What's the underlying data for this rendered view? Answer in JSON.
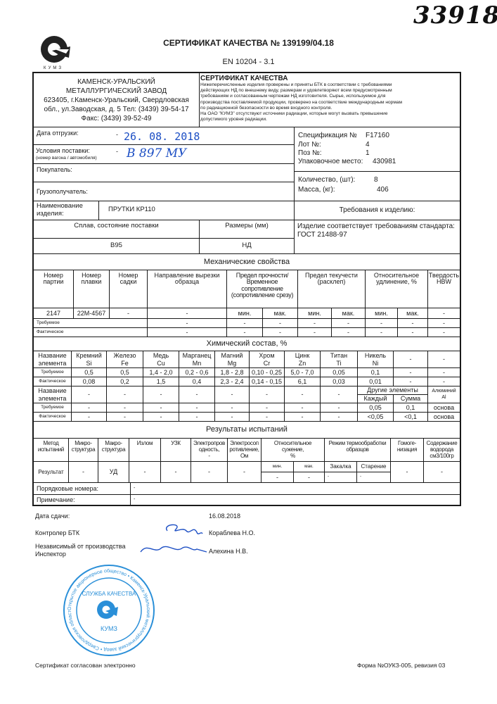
{
  "document": {
    "handwritten_number": "33918",
    "title": "СЕРТИФИКАТ КАЧЕСТВА № 139199/04.18",
    "standard": "EN 10204 - 3.1",
    "logo_text": "КУМЗ"
  },
  "company": {
    "lines": [
      "КАМЕНСК-УРАЛЬСКИЙ",
      "МЕТАЛЛУРГИЧЕСКИЙ ЗАВОД",
      "623405, г.Каменск-Уральский, Свердловская",
      "обл., ул.Заводская, д. 5 Тел: (3439) 39-54-17",
      "Факс: (3439) 39-52-49"
    ]
  },
  "certificate_box": {
    "title": "СЕРТИФИКАТ КАЧЕСТВА",
    "lines": [
      "Нижеперечисленные изделия проверены и приняты БТК в соответствии с требованиями",
      "действующих НД по внешнему виду, размерам и удовлетворяют всем предусмотренным",
      "требованиям и согласованным чертежам НД изготовителя. Сырье, используемое для",
      "производства поставляемой продукции, проверено на соответствие международным нормам",
      "по радиационной безопасности во время входного контроля.",
      "На ОАО \"КУМЗ\" отсутствуют источники радиации, которые могут вызвать превышение",
      "допустимого уровня радиации."
    ]
  },
  "shipment": {
    "date_label": "Дата отгрузки:",
    "date_value": "26. 08. 2018",
    "conditions_label": "Условия поставки:",
    "conditions_sub": "(номер вагона / автомобиля)",
    "conditions_value": "В 897 МУ",
    "dash": "-",
    "buyer_label": "Покупатель:",
    "consignee_label": "Грузополучатель:",
    "product_label": "Наименование\nизделия:",
    "product_value": "ПРУТКИ КР110",
    "alloy_header": "Сплав, состояние поставки",
    "size_header": "Размеры (мм)",
    "alloy_value": "В95",
    "size_value": "НД"
  },
  "specification": {
    "spec_label": "Спецификация №",
    "spec_value": "F17160",
    "lot_label": "Лот №:",
    "lot_value": "4",
    "pos_label": "Поз №:",
    "pos_value": "1",
    "pack_label": "Упаковочное место:",
    "pack_value": "430981",
    "qty_label": "Количество, (шт):",
    "qty_value": "8",
    "mass_label": "Масса, (кг):",
    "mass_value": "406",
    "requirements_header": "Требования к изделию:",
    "requirements_text": "Изделие соответствует требованиям стандарта:\nГОСТ 21488-97"
  },
  "mechanical": {
    "title": "Механические свойства",
    "headers": [
      "Номер\nпартии",
      "Номер\nплавки",
      "Номер\nсадки",
      "Направление вырезки\nобразца",
      "Предел прочности/\nВременное\nсопротивление\n(сопротивление срезу)",
      "Предел текучести\n(расклеп)",
      "Относительное\nудлинение, %",
      "Твердость\nHBW"
    ],
    "min": "мин.",
    "max": "мак.",
    "batch": "2147",
    "heat": "22M-4567",
    "cage": "-",
    "direction": "-",
    "hardness": "-",
    "required_label": "Требуемое",
    "actual_label": "Фактическое",
    "dash": "-"
  },
  "chemical": {
    "title": "Химический состав, %",
    "name_label": "Название\nэлемента",
    "required_label": "Требуемое",
    "actual_label": "Фактическое",
    "elements": [
      "Кремний\nSi",
      "Железо\nFe",
      "Медь\nCu",
      "Марганец\nMn",
      "Магний\nMg",
      "Хром\nCr",
      "Цинк\nZn",
      "Титан\nTi",
      "Никель\nNi",
      "-",
      "-"
    ],
    "required": [
      "0,5",
      "0,5",
      "1,4 - 2,0",
      "0,2 - 0,6",
      "1,8 - 2,8",
      "0,10 - 0,25",
      "5,0 - 7,0",
      "0,05",
      "0,1",
      "-",
      "-"
    ],
    "actual": [
      "0,08",
      "0,2",
      "1,5",
      "0,4",
      "2,3 - 2,4",
      "0,14 - 0,15",
      "6,1",
      "0,03",
      "0,01",
      "-",
      "-"
    ],
    "elements2": [
      "-",
      "-",
      "-",
      "-",
      "-",
      "-",
      "-",
      "-"
    ],
    "other_elements": "Другие элементы",
    "each": "Каждый",
    "sum": "Сумма",
    "aluminium": "Алюминий\nAl",
    "required2": [
      "-",
      "-",
      "-",
      "-",
      "-",
      "-",
      "-",
      "-",
      "0,05",
      "0,1",
      "основа"
    ],
    "actual2": [
      "-",
      "-",
      "-",
      "-",
      "-",
      "-",
      "-",
      "-",
      "<0,05",
      "<0,1",
      "основа"
    ]
  },
  "results": {
    "title": "Результаты испытаний",
    "headers": [
      "Метод\nиспытаний",
      "Микро-\nструктура",
      "Макро-\nструктура",
      "Излом",
      "УЗК",
      "Электропров\nодность,\n-",
      "Электросоп\nротивление,\nОм",
      "Относительное\nсужение,\n%",
      "Режим термообработки\nобразцов",
      "Гомоге-\nнизация",
      "Содержание\nводорода\nсм3/100гр"
    ],
    "result_label": "Результат",
    "values": [
      "-",
      "УД",
      "-",
      "-",
      "-",
      "-"
    ],
    "min": "мин.",
    "max": "мак.",
    "min_value": "-",
    "max_value": "-",
    "quench": "Закалка",
    "aging": "Старение",
    "quench_value": "-",
    "aging_value": "-",
    "homogenization": "-",
    "hydrogen": "-",
    "serial_label": "Порядковые номера:",
    "serial_value": "-",
    "note_label": "Примечание:",
    "note_value": "-"
  },
  "signoff": {
    "date_label": "Дата сдачи:",
    "date_value": "16.08.2018",
    "controller_label": "Контролер БТК",
    "controller_name": "Кораблева Н.О.",
    "inspector_label": "Независимый от производства\nИнспектор",
    "inspector_name": "Алехина Н.В.",
    "stamp_inner": "СЛУЖБА КАЧЕСТВА",
    "stamp_logo": "КУМЗ",
    "stamp_ring": "Открытое акционерное общество • Каменск-Уральский металлургический завод • Свердловская область г. Каменск-Уральский •"
  },
  "footer": {
    "left": "Сертификат согласован электронно",
    "right": "Форма №ОУКЗ-005, ревизия 03"
  },
  "colors": {
    "ink": "#1a1a1a",
    "stamp": "#2a8fd8",
    "handwriting": "#1d4fc4"
  }
}
